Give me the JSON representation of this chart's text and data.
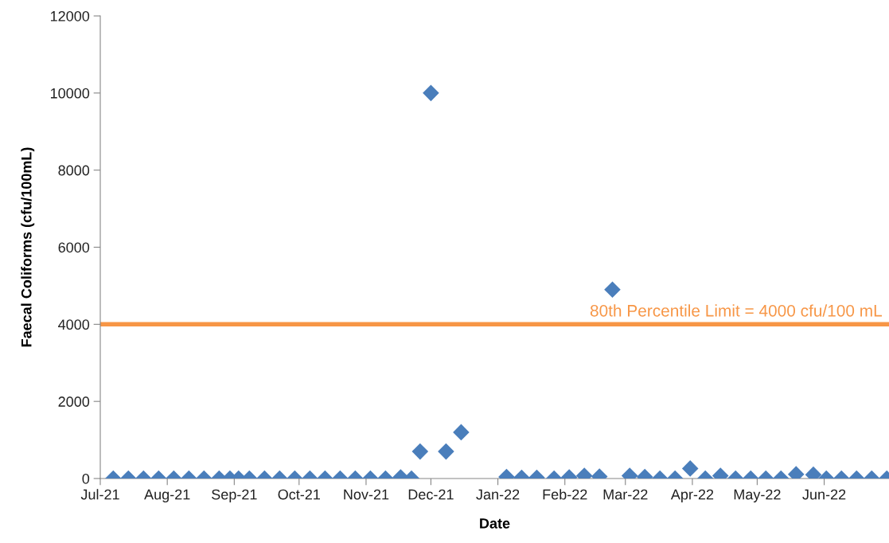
{
  "chart_data": {
    "type": "scatter",
    "xlabel": "Date",
    "ylabel": "Faecal Coliforms (cfu/100mL)",
    "x": [
      "2021-07-07",
      "2021-07-14",
      "2021-07-21",
      "2021-07-28",
      "2021-08-04",
      "2021-08-11",
      "2021-08-18",
      "2021-08-25",
      "2021-08-30",
      "2021-09-03",
      "2021-09-08",
      "2021-09-15",
      "2021-09-22",
      "2021-09-29",
      "2021-10-06",
      "2021-10-13",
      "2021-10-20",
      "2021-10-27",
      "2021-11-03",
      "2021-11-10",
      "2021-11-17",
      "2021-11-22",
      "2021-11-26",
      "2021-12-01",
      "2021-12-08",
      "2021-12-15",
      "2022-01-05",
      "2022-01-12",
      "2022-01-19",
      "2022-01-27",
      "2022-02-03",
      "2022-02-10",
      "2022-02-17",
      "2022-02-23",
      "2022-03-03",
      "2022-03-10",
      "2022-03-17",
      "2022-03-24",
      "2022-03-31",
      "2022-04-07",
      "2022-04-14",
      "2022-04-21",
      "2022-04-28",
      "2022-05-05",
      "2022-05-12",
      "2022-05-19",
      "2022-05-27",
      "2022-06-02",
      "2022-06-09",
      "2022-06-16",
      "2022-06-23",
      "2022-06-30"
    ],
    "series": [
      {
        "color": "#4a7ebb",
        "values": [
          0,
          0,
          0,
          0,
          0,
          0,
          0,
          0,
          0,
          0,
          0,
          0,
          0,
          0,
          0,
          0,
          0,
          0,
          0,
          0,
          30,
          0,
          700,
          10000,
          700,
          1200,
          40,
          20,
          20,
          0,
          30,
          70,
          50,
          4900,
          70,
          40,
          0,
          0,
          260,
          0,
          70,
          0,
          0,
          0,
          0,
          110,
          100,
          0,
          0,
          0,
          0,
          0
        ]
      }
    ],
    "marker": "diamond",
    "grid": false,
    "xlim": [
      "2021-07-01",
      "2022-07-01"
    ],
    "xticks": [
      {
        "value": "2021-07-01",
        "label": "Jul-21"
      },
      {
        "value": "2021-08-01",
        "label": "Aug-21"
      },
      {
        "value": "2021-09-01",
        "label": "Sep-21"
      },
      {
        "value": "2021-10-01",
        "label": "Oct-21"
      },
      {
        "value": "2021-11-01",
        "label": "Nov-21"
      },
      {
        "value": "2021-12-01",
        "label": "Dec-21"
      },
      {
        "value": "2022-01-01",
        "label": "Jan-22"
      },
      {
        "value": "2022-02-01",
        "label": "Feb-22"
      },
      {
        "value": "2022-03-01",
        "label": "Mar-22"
      },
      {
        "value": "2022-04-01",
        "label": "Apr-22"
      },
      {
        "value": "2022-05-01",
        "label": "May-22"
      },
      {
        "value": "2022-06-01",
        "label": "Jun-22"
      }
    ],
    "ylim": [
      0,
      12000
    ],
    "yticks": [
      0,
      2000,
      4000,
      6000,
      8000,
      10000,
      12000
    ],
    "ref_lines": [
      {
        "axis": "y",
        "value": 4000,
        "label": "80th Percentile Limit = 4000 cfu/100 mL",
        "color": "#f79646",
        "line_style": "solid"
      }
    ]
  }
}
